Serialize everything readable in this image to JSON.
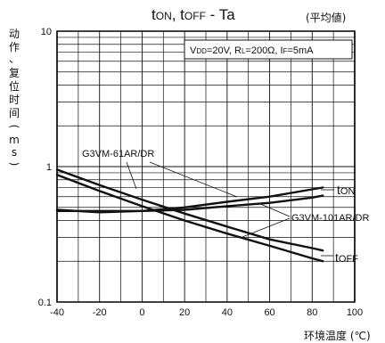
{
  "chart_data": {
    "type": "line",
    "title": "t_ON, t_OFF - Ta",
    "title_note": "(平均値)",
    "condition": "V_DD=20V, R_L=200Ω, I_F=5mA",
    "xlabel": "环境温度 (℃)",
    "ylabel": "动作、复位时间 (ms)",
    "x_ticks": [
      "-40",
      "-20",
      "0",
      "20",
      "40",
      "60",
      "80",
      "100"
    ],
    "y_ticks": [
      "0.1",
      "1",
      "10"
    ],
    "xlim": [
      -40,
      100
    ],
    "ylim": [
      0.1,
      10
    ],
    "y_scale": "log",
    "grid": true,
    "series": [
      {
        "name": "G3VM-61AR/DR t_ON",
        "x": [
          -40,
          -20,
          0,
          20,
          40,
          60,
          80,
          85
        ],
        "y": [
          0.48,
          0.46,
          0.47,
          0.5,
          0.55,
          0.6,
          0.68,
          0.7
        ]
      },
      {
        "name": "G3VM-61AR/DR t_OFF",
        "x": [
          -40,
          -20,
          0,
          20,
          40,
          60,
          80,
          85
        ],
        "y": [
          0.95,
          0.73,
          0.57,
          0.45,
          0.36,
          0.29,
          0.25,
          0.24
        ]
      },
      {
        "name": "G3VM-101AR/DR t_ON",
        "x": [
          -40,
          -20,
          0,
          20,
          40,
          60,
          80,
          85
        ],
        "y": [
          0.47,
          0.47,
          0.47,
          0.48,
          0.51,
          0.54,
          0.59,
          0.61
        ]
      },
      {
        "name": "G3VM-101AR/DR t_OFF",
        "x": [
          -40,
          -20,
          0,
          20,
          40,
          60,
          80,
          85
        ],
        "y": [
          0.87,
          0.66,
          0.51,
          0.4,
          0.32,
          0.26,
          0.21,
          0.2
        ]
      }
    ],
    "labels": {
      "series_a": "G3VM-61AR/DR",
      "series_b": "G3VM-101AR/DR",
      "t_on": "tON",
      "t_off": "tOFF"
    }
  }
}
